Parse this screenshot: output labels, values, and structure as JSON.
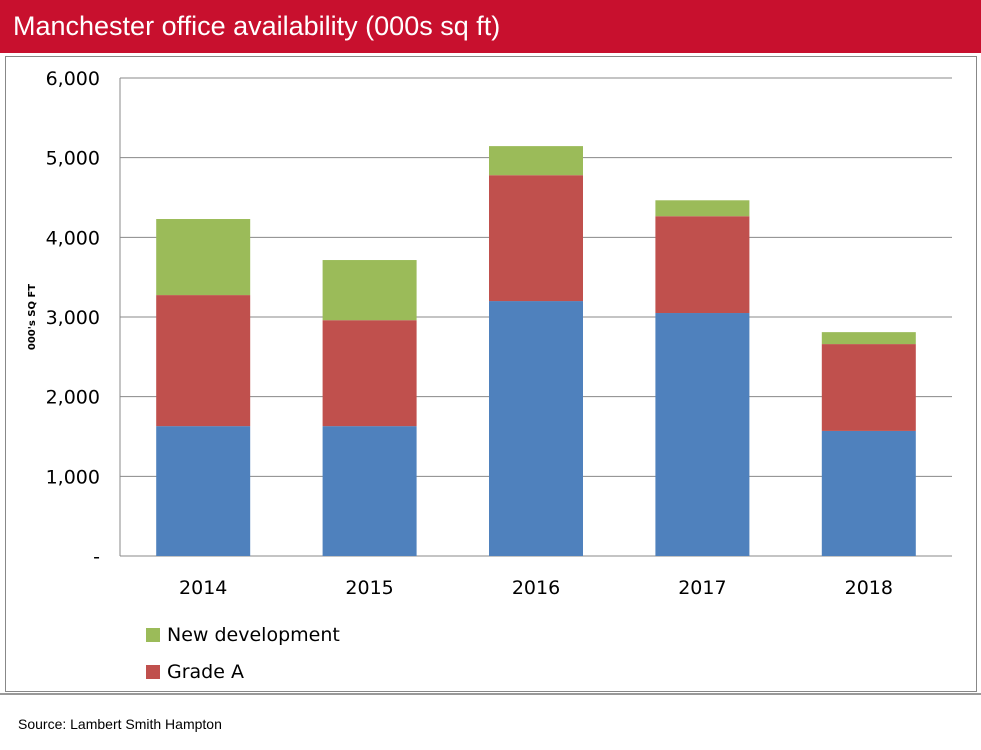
{
  "title": "Manchester office availability (000s sq ft)",
  "source": "Source: Lambert Smith Hampton",
  "chart_data": {
    "type": "bar",
    "stacked": true,
    "title": "Manchester office availability (000s sq ft)",
    "xlabel": "",
    "ylabel": "000's SQ FT",
    "ylim": [
      0,
      6000
    ],
    "yticks": [
      "-",
      "1,000",
      "2,000",
      "3,000",
      "4,000",
      "5,000",
      "6,000"
    ],
    "grid": true,
    "legend_position": "bottom-left",
    "categories": [
      "2014",
      "2015",
      "2016",
      "2017",
      "2018"
    ],
    "series": [
      {
        "values": [
          1630,
          1630,
          3200,
          3050,
          1570
        ],
        "color": "#4f81bd"
      },
      {
        "name": "Grade A",
        "values": [
          1645,
          1330,
          1580,
          1215,
          1090
        ],
        "color": "#c0504d"
      },
      {
        "name": "New development",
        "values": [
          955,
          755,
          365,
          200,
          150
        ],
        "color": "#9bbb59"
      }
    ]
  }
}
